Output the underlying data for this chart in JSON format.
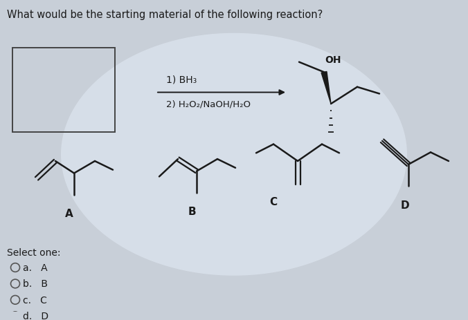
{
  "title": "What would be the starting material of the following reaction?",
  "bg_outer": "#c8cfd8",
  "bg_inner": "#dce4ee",
  "reaction_step1": "1) BH₃",
  "reaction_step2": "2) H₂O₂/NaOH/H₂O",
  "options_text": [
    "a.   A",
    "b.   B",
    "c.   C",
    "d.   D"
  ],
  "labels": [
    "A",
    "B",
    "C",
    "D"
  ],
  "fig_width": 6.76,
  "fig_height": 4.64,
  "dpi": 100,
  "tc": "#1a1a1a",
  "lw": 1.8,
  "box_ec": "#444444"
}
